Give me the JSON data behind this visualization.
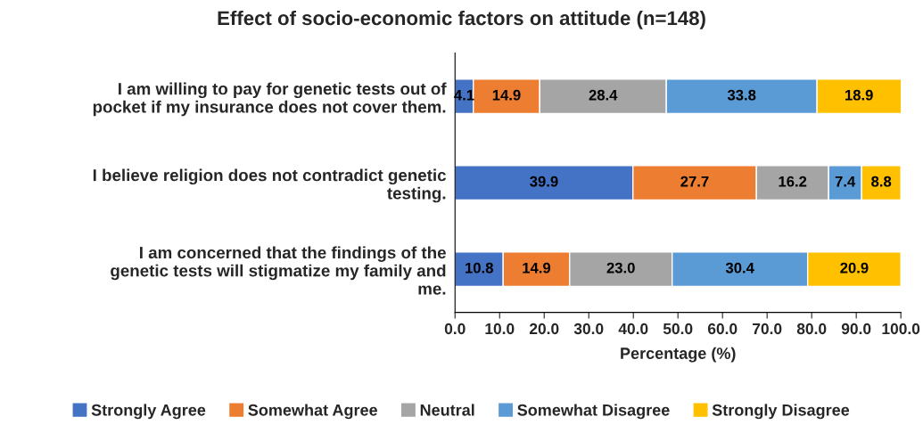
{
  "chart_data": {
    "type": "bar",
    "orientation": "horizontal",
    "stacked": true,
    "title": "Effect of socio-economic factors on attitude (n=148)",
    "xlabel": "Percentage (%)",
    "categories": [
      "I am willing to pay for genetic tests out of pocket if my insurance does not cover them.",
      "I believe religion does not contradict genetic testing.",
      "I am concerned that the findings of the genetic tests will stigmatize my family and me."
    ],
    "series": [
      {
        "name": "Strongly Agree",
        "color": "#4472c4",
        "values": [
          4.1,
          39.9,
          10.8
        ],
        "value_labels": [
          "4.1",
          "39.9",
          "10.8"
        ]
      },
      {
        "name": "Somewhat Agree",
        "color": "#ed7d31",
        "values": [
          14.9,
          27.7,
          14.9
        ],
        "value_labels": [
          "14.9",
          "27.7",
          "14.9"
        ]
      },
      {
        "name": "Neutral",
        "color": "#a5a5a5",
        "values": [
          28.4,
          16.2,
          23.0
        ],
        "value_labels": [
          "28.4",
          "16.2",
          "23.0"
        ]
      },
      {
        "name": "Somewhat Disagree",
        "color": "#5b9bd5",
        "values": [
          33.8,
          7.4,
          30.4
        ],
        "value_labels": [
          "33.8",
          "7.4",
          "30.4"
        ]
      },
      {
        "name": "Strongly Disagree",
        "color": "#ffc000",
        "values": [
          18.9,
          8.8,
          20.9
        ],
        "value_labels": [
          "18.9",
          "8.8",
          "20.9"
        ]
      }
    ],
    "xlim": [
      0,
      100
    ],
    "xticks": [
      {
        "value": 0,
        "label": "0.0"
      },
      {
        "value": 10,
        "label": "10.0"
      },
      {
        "value": 20,
        "label": "20.0"
      },
      {
        "value": 30,
        "label": "30.0"
      },
      {
        "value": 40,
        "label": "40.0"
      },
      {
        "value": 50,
        "label": "50.0"
      },
      {
        "value": 60,
        "label": "60.0"
      },
      {
        "value": 70,
        "label": "70.0"
      },
      {
        "value": 80,
        "label": "80.0"
      },
      {
        "value": 90,
        "label": "90.0"
      },
      {
        "value": 100,
        "label": "100.0"
      }
    ],
    "grid": false,
    "legend": "bottom"
  }
}
